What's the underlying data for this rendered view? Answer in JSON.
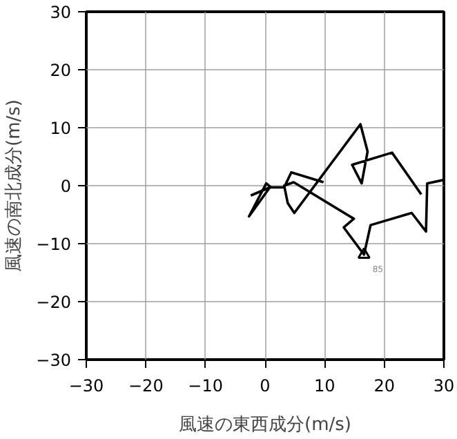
{
  "chart_data": {
    "type": "line",
    "xlabel": "風速の東西成分(m/s)",
    "ylabel": "風速の南北成分(m/s)",
    "xlim": [
      -30,
      30
    ],
    "ylim": [
      -30,
      30
    ],
    "xticks": [
      -30,
      -20,
      -10,
      0,
      10,
      20,
      30
    ],
    "yticks": [
      -30,
      -20,
      -10,
      0,
      10,
      20,
      30
    ],
    "grid": true,
    "series": [
      {
        "color": "#000000",
        "x": [
          30,
          27.2,
          27,
          24.6,
          17.7,
          16.6,
          13.2,
          14.9,
          4.8,
          3.2,
          3.8,
          4.9,
          16,
          17.2,
          16.2,
          14.6,
          21.3,
          26.2,
          null,
          9.8,
          4.4,
          3.2,
          1,
          0.2,
          -2.7,
          0.8,
          -2.4
        ],
        "values": [
          1,
          0.4,
          -7.9,
          -4.7,
          -6.8,
          -11.9,
          -7.2,
          -5.7,
          0.6,
          0,
          -3,
          -4.7,
          10.6,
          5.9,
          0.4,
          3.6,
          5.7,
          -1.5,
          null,
          0.6,
          2.3,
          -0.3,
          -0.3,
          0.4,
          -5.3,
          -0.3,
          -1.7
        ]
      },
      {
        "type": "scatter",
        "marker": "triangle",
        "color": "#000000",
        "x": [
          16.6
        ],
        "values": [
          -11.9
        ]
      }
    ],
    "annotations": [
      "85"
    ]
  }
}
